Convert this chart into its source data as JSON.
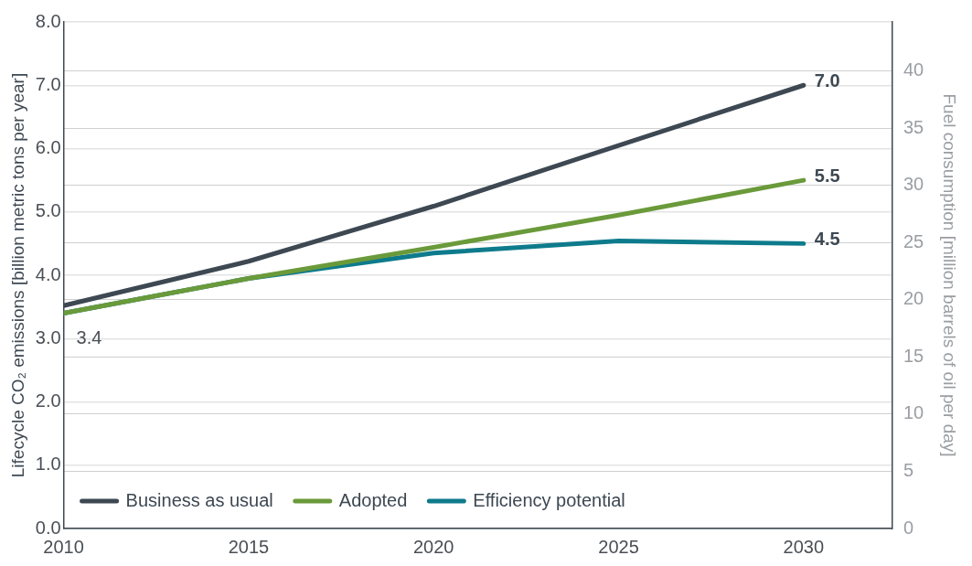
{
  "chart_data": {
    "type": "line",
    "ylabel": "Lifecycle CO₂ emissions [billion metric tons per year]",
    "y2label": "Fuel consumption [million barrels of oil per day]",
    "x": [
      2010,
      2015,
      2020,
      2025,
      2030
    ],
    "xlim": [
      2010,
      2032.4
    ],
    "xticks": [
      2010,
      2015,
      2020,
      2025,
      2030
    ],
    "ylim": [
      0,
      8
    ],
    "yticks": [
      {
        "value": 0,
        "label": "0.0"
      },
      {
        "value": 1,
        "label": "1.0"
      },
      {
        "value": 2,
        "label": "2.0"
      },
      {
        "value": 3,
        "label": "3.0"
      },
      {
        "value": 4,
        "label": "4.0"
      },
      {
        "value": 5,
        "label": "5.0"
      },
      {
        "value": 6,
        "label": "6.0"
      },
      {
        "value": 7,
        "label": "7.0"
      },
      {
        "value": 8,
        "label": "8.0"
      }
    ],
    "y2lim": [
      0,
      44.3
    ],
    "y2ticks": [
      0,
      5,
      10,
      15,
      20,
      25,
      30,
      35,
      40
    ],
    "grid": "y",
    "legend": "bottom left",
    "marker": "none",
    "line_style": "solid",
    "series": [
      {
        "name": "Business as usual",
        "color": "#3d4852",
        "values": [
          3.52,
          4.22,
          5.09,
          6.05,
          7.0
        ],
        "value_labels": [
          null,
          null,
          null,
          null,
          "7.0"
        ]
      },
      {
        "name": "Adopted",
        "color": "#6a9a3a",
        "values": [
          3.4,
          3.95,
          4.44,
          4.95,
          5.5
        ],
        "value_labels": [
          null,
          null,
          null,
          null,
          "5.5"
        ]
      },
      {
        "name": "Efficiency potential",
        "color": "#0e7b8c",
        "values": [
          3.4,
          3.95,
          4.35,
          4.54,
          4.5
        ],
        "value_labels": [
          "3.4",
          null,
          null,
          null,
          "4.5"
        ]
      }
    ]
  }
}
